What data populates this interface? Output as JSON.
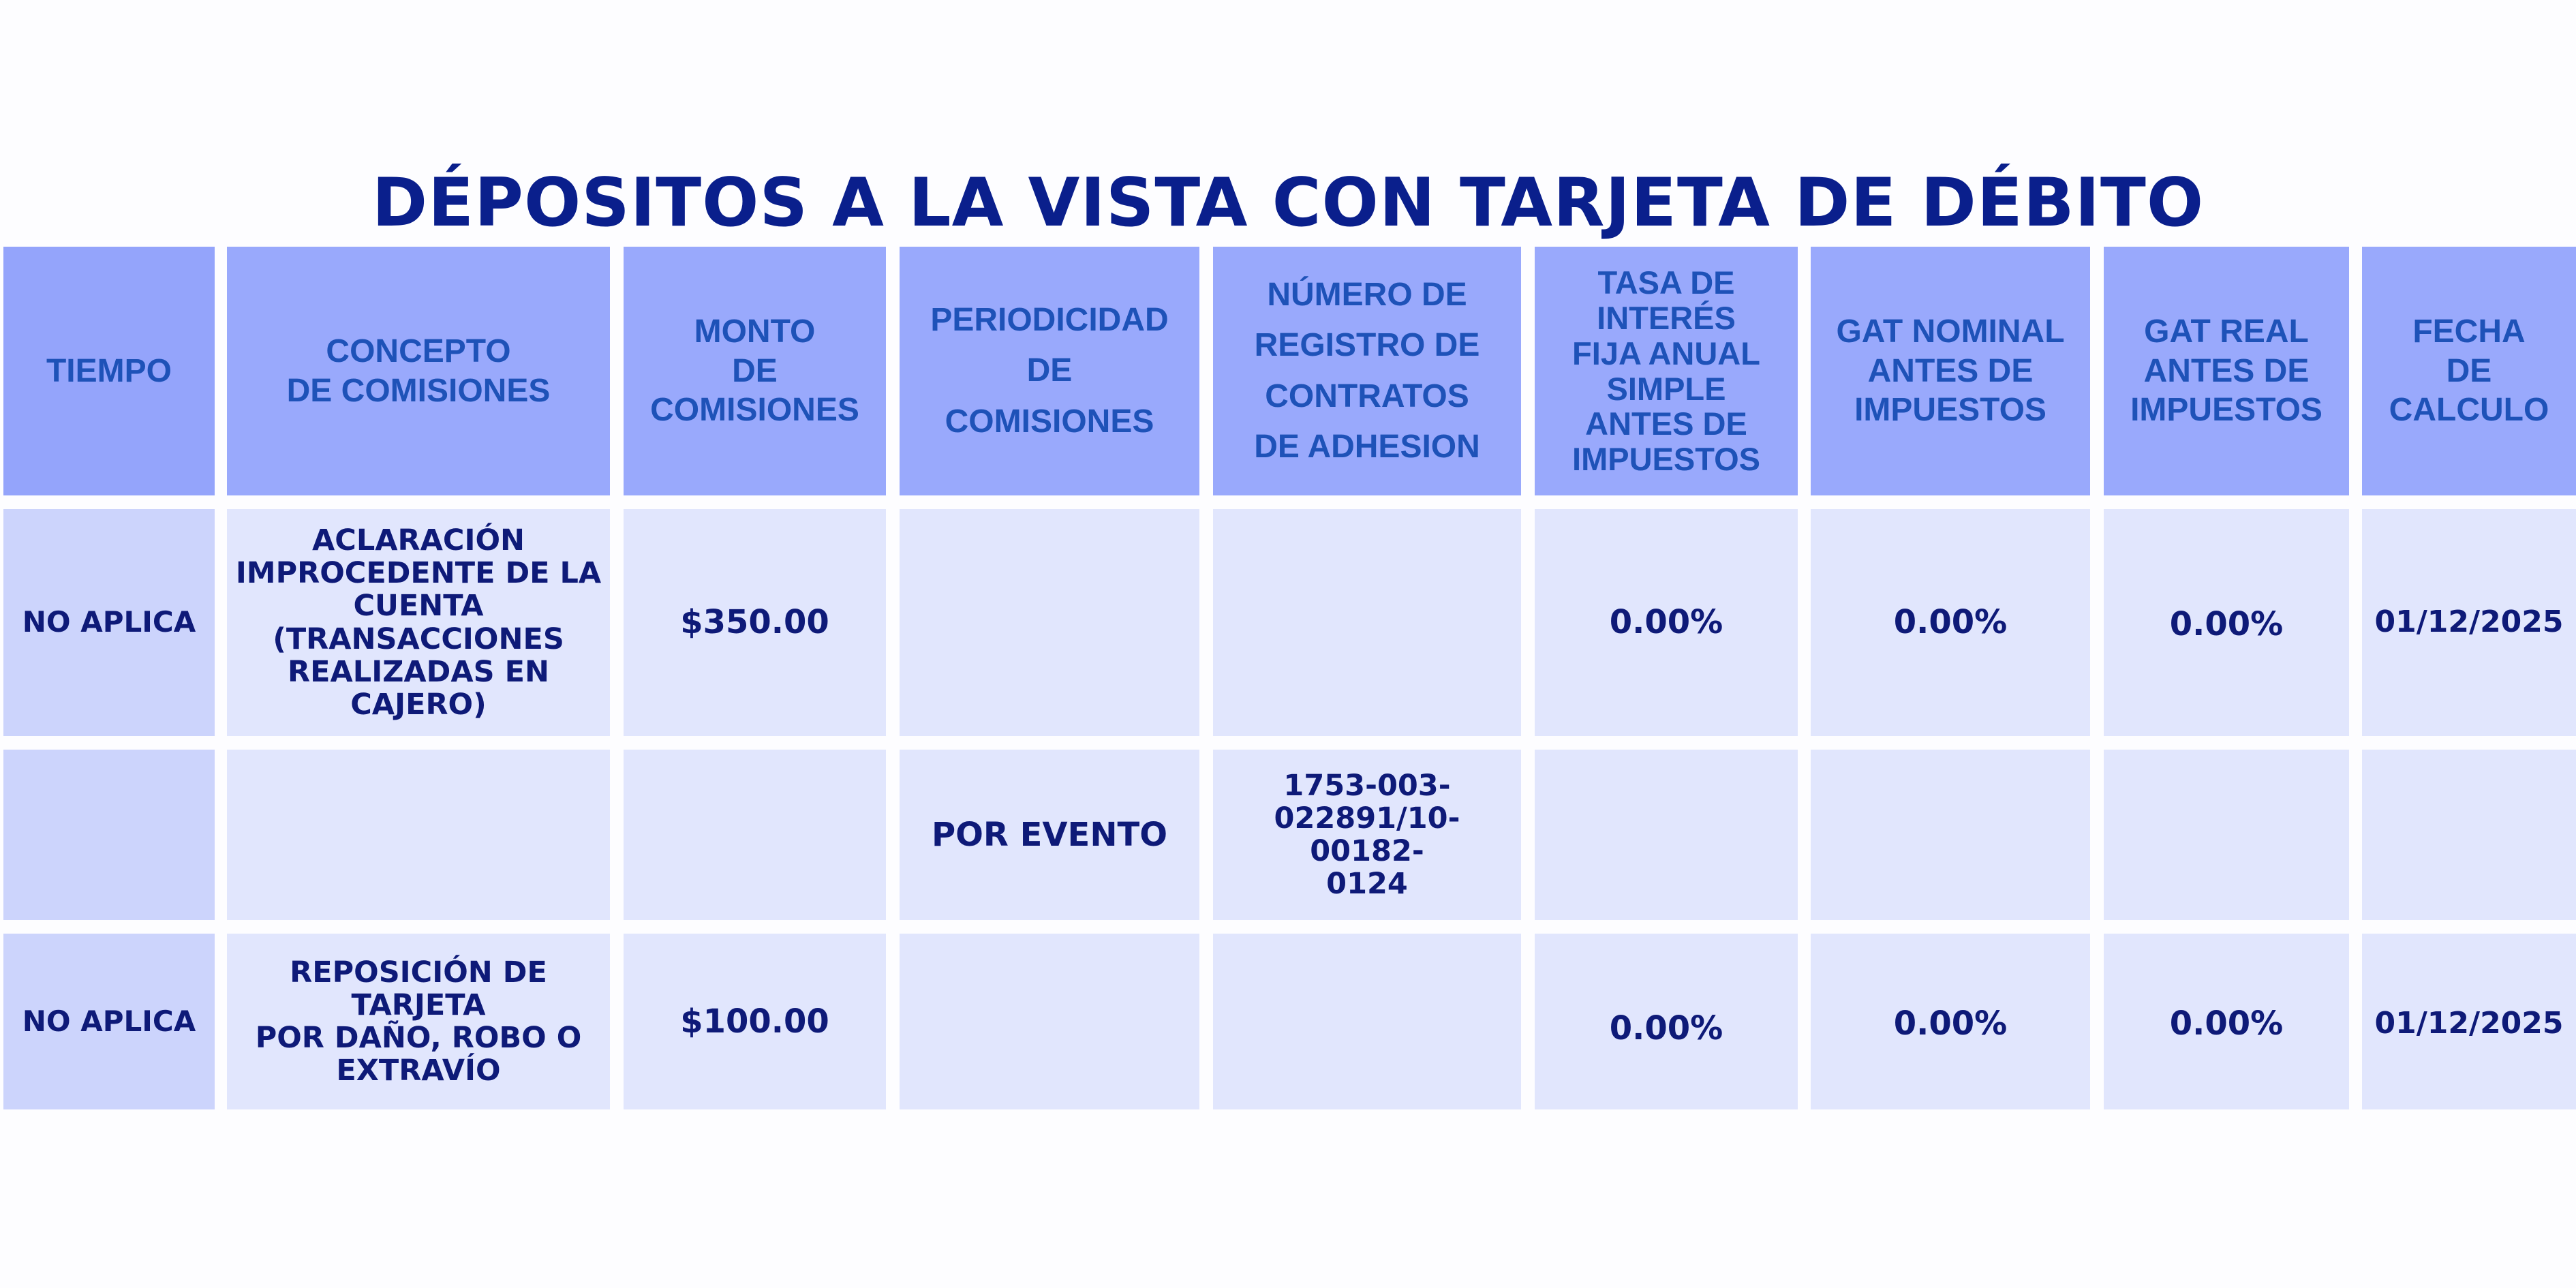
{
  "title": "DÉPOSITOS A LA VISTA CON TARJETA DE DÉBITO",
  "table": {
    "headers": [
      "TIEMPO",
      "CONCEPTO\nDE COMISIONES",
      "MONTO\nDE\nCOMISIONES",
      "PERIODICIDAD\nDE\nCOMISIONES",
      "NÚMERO DE\nREGISTRO DE\nCONTRATOS\nDE ADHESION",
      "TASA DE\nINTERÉS\nFIJA ANUAL\nSIMPLE\nANTES DE\nIMPUESTOS",
      "GAT NOMINAL\nANTES DE\nIMPUESTOS",
      "GAT REAL\nANTES DE\nIMPUESTOS",
      "FECHA\nDE\nCALCULO"
    ],
    "rows": [
      [
        "NO APLICA",
        "ACLARACIÓN\nIMPROCEDENTE DE LA\nCUENTA\n(TRANSACCIONES\nREALIZADAS EN CAJERO)",
        "$350.00",
        "",
        "",
        "0.00%",
        "0.00%",
        "0.00%",
        "01/12/2025"
      ],
      [
        "",
        "",
        "",
        "POR EVENTO",
        "1753-003-\n022891/10-00182-\n0124",
        "",
        "",
        "",
        ""
      ],
      [
        "NO APLICA",
        "REPOSICIÓN DE TARJETA\nPOR DAÑO, ROBO O\nEXTRAVÍO",
        "$100.00",
        "",
        "",
        "0.00%",
        "0.00%",
        "0.00%",
        "01/12/2025"
      ]
    ]
  },
  "colors": {
    "title": "#0a1f8c",
    "header_bg": "#99a9fc",
    "header_text": "#1e52b8",
    "body_bg": "#e1e6fd",
    "first_col_bg": "#ccd4fc",
    "body_text": "#0e1a78"
  }
}
